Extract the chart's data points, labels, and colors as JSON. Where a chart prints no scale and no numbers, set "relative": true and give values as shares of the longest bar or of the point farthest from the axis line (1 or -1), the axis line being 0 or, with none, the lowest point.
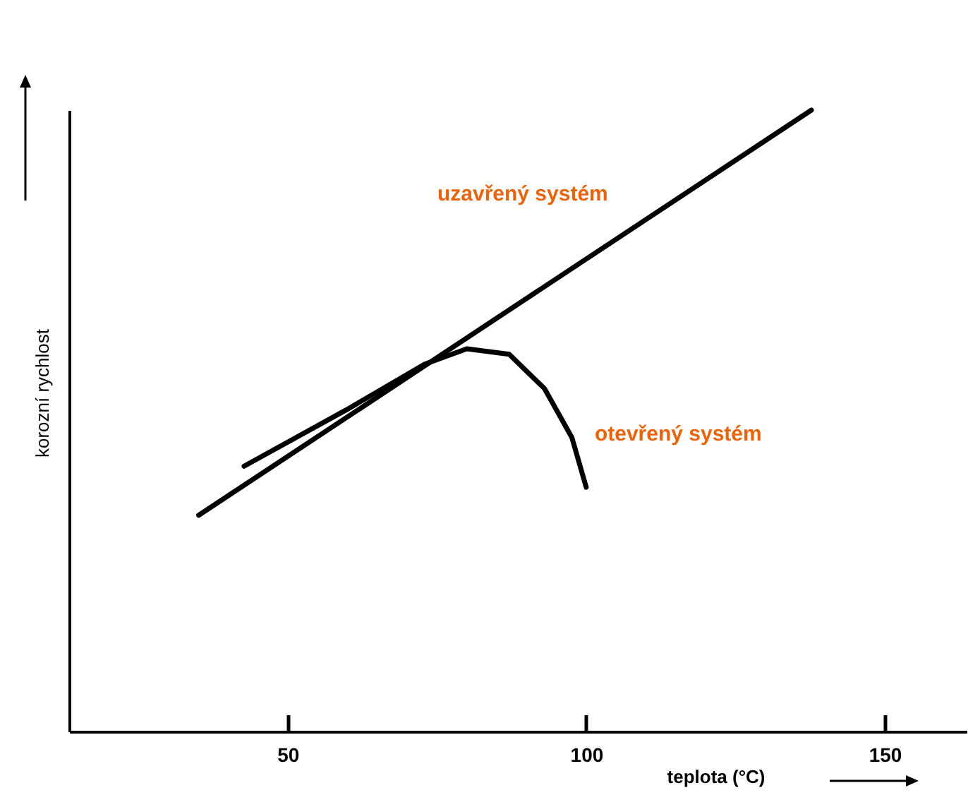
{
  "chart_data": {
    "type": "line",
    "relative": true,
    "xlabel": "teplota (°C)",
    "ylabel": "korozní rychlost",
    "xlim": [
      13.4,
      163.7
    ],
    "xticks": [
      50,
      100,
      150
    ],
    "grid": false,
    "marker": "none",
    "line_style": "solid",
    "series": [
      {
        "name": "uzavřený systém",
        "color": "#000000",
        "x": [
          35.1,
          137.7
        ],
        "values": [
          0.348,
          1
        ]
      },
      {
        "name": "otevřený systém",
        "color": "#000000",
        "x": [
          42.7,
          59.9,
          72.9,
          80,
          87.1,
          93,
          97.6,
          100
        ],
        "values": [
          0.427,
          0.518,
          0.591,
          0.616,
          0.607,
          0.552,
          0.473,
          0.393
        ]
      }
    ]
  }
}
